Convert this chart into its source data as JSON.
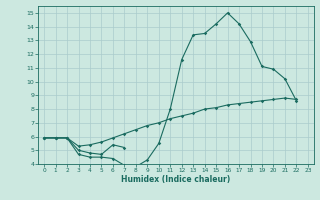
{
  "xlabel": "Humidex (Indice chaleur)",
  "bg_color": "#cce8e0",
  "grid_color": "#aacccc",
  "line_color": "#1a6b60",
  "xlim": [
    -0.5,
    23.5
  ],
  "ylim": [
    4,
    15.5
  ],
  "xticks": [
    0,
    1,
    2,
    3,
    4,
    5,
    6,
    7,
    8,
    9,
    10,
    11,
    12,
    13,
    14,
    15,
    16,
    17,
    18,
    19,
    20,
    21,
    22,
    23
  ],
  "yticks": [
    4,
    5,
    6,
    7,
    8,
    9,
    10,
    11,
    12,
    13,
    14,
    15
  ],
  "line1_x": [
    0,
    1,
    2,
    3,
    4,
    5,
    6,
    7,
    8,
    9,
    10,
    11,
    12,
    13,
    14,
    15,
    16,
    17,
    18,
    19,
    20,
    21,
    22
  ],
  "line1_y": [
    5.9,
    5.9,
    5.9,
    4.7,
    4.5,
    4.5,
    4.4,
    3.9,
    3.8,
    4.3,
    5.5,
    8.0,
    11.6,
    13.4,
    13.5,
    14.2,
    15.0,
    14.2,
    12.9,
    11.1,
    10.9,
    10.2,
    8.6
  ],
  "line2_x": [
    0,
    1,
    2,
    3,
    4,
    5,
    6,
    7
  ],
  "line2_y": [
    5.9,
    5.9,
    5.9,
    5.0,
    4.8,
    4.7,
    5.4,
    5.2
  ],
  "line3_x": [
    0,
    1,
    2,
    3,
    4,
    5,
    6,
    7,
    8,
    9,
    10,
    11,
    12,
    13,
    14,
    15,
    16,
    17,
    18,
    19,
    20,
    21,
    22
  ],
  "line3_y": [
    5.9,
    5.9,
    5.9,
    5.3,
    5.4,
    5.6,
    5.9,
    6.2,
    6.5,
    6.8,
    7.0,
    7.3,
    7.5,
    7.7,
    8.0,
    8.1,
    8.3,
    8.4,
    8.5,
    8.6,
    8.7,
    8.8,
    8.7
  ]
}
